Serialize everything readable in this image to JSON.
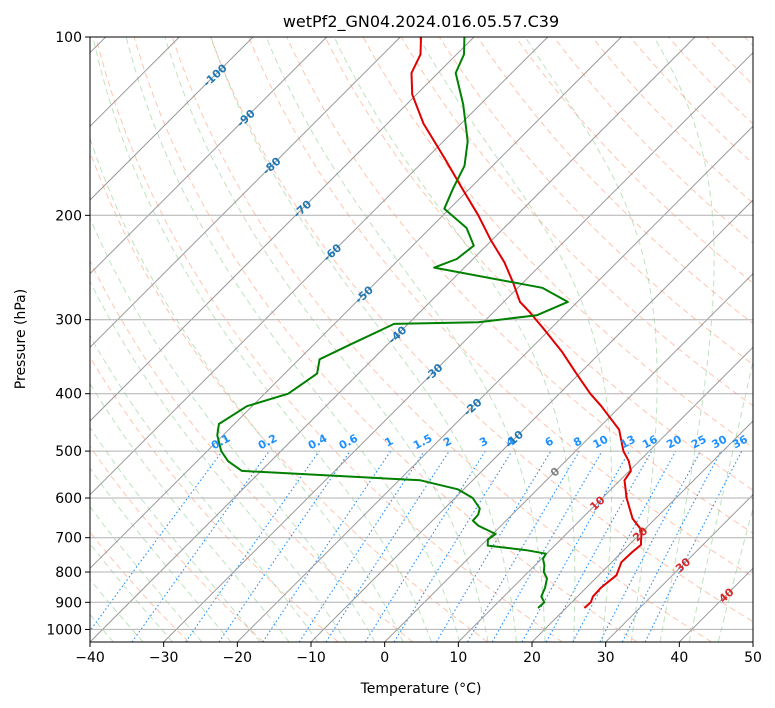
{
  "chart_data": {
    "type": "line",
    "subtype": "skew-t",
    "title": "wetPf2_GN04.2024.016.05.57.C39",
    "xlabel": "Temperature (°C)",
    "ylabel": "Pressure (hPa)",
    "xlim": [
      -40,
      50
    ],
    "ylim": [
      1050,
      100
    ],
    "y_scale": "log",
    "x_ticks": [
      -40,
      -30,
      -20,
      -10,
      0,
      10,
      20,
      30,
      40,
      50
    ],
    "x_tick_labels": [
      "−40",
      "−30",
      "−20",
      "−10",
      "0",
      "10",
      "20",
      "30",
      "40",
      "50"
    ],
    "y_ticks": [
      1000,
      900,
      800,
      700,
      600,
      500,
      400,
      300,
      200,
      100
    ],
    "y_tick_labels": [
      "1000",
      "900",
      "800",
      "700",
      "600",
      "500",
      "400",
      "300",
      "200",
      "100"
    ],
    "grid": true,
    "series": [
      {
        "role": "temperature",
        "color": "#e00000",
        "points": [
          {
            "p": 920,
            "t": 22.5
          },
          {
            "p": 900,
            "t": 22.6
          },
          {
            "p": 880,
            "t": 22.1
          },
          {
            "p": 850,
            "t": 22.0
          },
          {
            "p": 810,
            "t": 22.4
          },
          {
            "p": 770,
            "t": 21.3
          },
          {
            "p": 740,
            "t": 21.4
          },
          {
            "p": 720,
            "t": 21.6
          },
          {
            "p": 680,
            "t": 19.7
          },
          {
            "p": 650,
            "t": 16.9
          },
          {
            "p": 600,
            "t": 13.3
          },
          {
            "p": 560,
            "t": 10.6
          },
          {
            "p": 540,
            "t": 10.2
          },
          {
            "p": 520,
            "t": 8.6
          },
          {
            "p": 500,
            "t": 6.5
          },
          {
            "p": 460,
            "t": 3.0
          },
          {
            "p": 420,
            "t": -2.6
          },
          {
            "p": 400,
            "t": -5.8
          },
          {
            "p": 370,
            "t": -10.4
          },
          {
            "p": 340,
            "t": -15.3
          },
          {
            "p": 310,
            "t": -21.1
          },
          {
            "p": 290,
            "t": -25.4
          },
          {
            "p": 280,
            "t": -27.8
          },
          {
            "p": 260,
            "t": -31.3
          },
          {
            "p": 240,
            "t": -35.3
          },
          {
            "p": 220,
            "t": -40.2
          },
          {
            "p": 200,
            "t": -45.2
          },
          {
            "p": 180,
            "t": -51.1
          },
          {
            "p": 160,
            "t": -57.6
          },
          {
            "p": 140,
            "t": -65.1
          },
          {
            "p": 125,
            "t": -70.6
          },
          {
            "p": 115,
            "t": -73.6
          },
          {
            "p": 107,
            "t": -74.9
          },
          {
            "p": 100,
            "t": -77.2
          }
        ]
      },
      {
        "role": "dewpoint",
        "color": "#008000",
        "points": [
          {
            "p": 920,
            "t": 16.2
          },
          {
            "p": 900,
            "t": 16.3
          },
          {
            "p": 880,
            "t": 15.1
          },
          {
            "p": 850,
            "t": 14.4
          },
          {
            "p": 820,
            "t": 13.4
          },
          {
            "p": 800,
            "t": 12.1
          },
          {
            "p": 780,
            "t": 11.3
          },
          {
            "p": 760,
            "t": 10.2
          },
          {
            "p": 745,
            "t": 9.9
          },
          {
            "p": 735,
            "t": 6.8
          },
          {
            "p": 722,
            "t": 0.9
          },
          {
            "p": 705,
            "t": 0.1
          },
          {
            "p": 690,
            "t": 0.4
          },
          {
            "p": 668,
            "t": -3.1
          },
          {
            "p": 655,
            "t": -4.5
          },
          {
            "p": 640,
            "t": -4.6
          },
          {
            "p": 625,
            "t": -5.2
          },
          {
            "p": 600,
            "t": -7.6
          },
          {
            "p": 580,
            "t": -10.8
          },
          {
            "p": 560,
            "t": -17.1
          },
          {
            "p": 540,
            "t": -42.6
          },
          {
            "p": 520,
            "t": -45.8
          },
          {
            "p": 500,
            "t": -48.1
          },
          {
            "p": 470,
            "t": -50.8
          },
          {
            "p": 450,
            "t": -52.1
          },
          {
            "p": 420,
            "t": -50.7
          },
          {
            "p": 400,
            "t": -46.8
          },
          {
            "p": 370,
            "t": -45.6
          },
          {
            "p": 350,
            "t": -47.2
          },
          {
            "p": 330,
            "t": -45.0
          },
          {
            "p": 305,
            "t": -41.9
          },
          {
            "p": 303,
            "t": -30.7
          },
          {
            "p": 295,
            "t": -23.7
          },
          {
            "p": 280,
            "t": -21.3
          },
          {
            "p": 265,
            "t": -26.7
          },
          {
            "p": 245,
            "t": -44.1
          },
          {
            "p": 237,
            "t": -42.2
          },
          {
            "p": 225,
            "t": -41.7
          },
          {
            "p": 210,
            "t": -45.1
          },
          {
            "p": 195,
            "t": -50.7
          },
          {
            "p": 180,
            "t": -52.3
          },
          {
            "p": 165,
            "t": -53.8
          },
          {
            "p": 150,
            "t": -56.7
          },
          {
            "p": 130,
            "t": -62.3
          },
          {
            "p": 115,
            "t": -67.6
          },
          {
            "p": 107,
            "t": -69.0
          },
          {
            "p": 100,
            "t": -71.3
          }
        ]
      }
    ],
    "mixing_ratio_labels": [
      "0.1",
      "0.2",
      "0.4",
      "0.6",
      "1",
      "1.5",
      "2",
      "3",
      "4",
      "6",
      "8",
      "10",
      "13",
      "16",
      "20",
      "25",
      "30",
      "36"
    ],
    "mixing_ratio_values": [
      0.1,
      0.2,
      0.4,
      0.6,
      1,
      1.5,
      2,
      3,
      4,
      6,
      8,
      10,
      13,
      16,
      20,
      25,
      30,
      36
    ],
    "isotherm_labels": [
      {
        "text": "-100",
        "t": -100,
        "p": 116,
        "color": "#1f77b4"
      },
      {
        "text": "-90",
        "t": -90,
        "p": 137,
        "color": "#1f77b4"
      },
      {
        "text": "-80",
        "t": -80,
        "p": 165,
        "color": "#1f77b4"
      },
      {
        "text": "-70",
        "t": -70,
        "p": 195,
        "color": "#1f77b4"
      },
      {
        "text": "-60",
        "t": -60,
        "p": 231,
        "color": "#1f77b4"
      },
      {
        "text": "-50",
        "t": -50,
        "p": 272,
        "color": "#1f77b4"
      },
      {
        "text": "-40",
        "t": -40,
        "p": 318,
        "color": "#1f77b4"
      },
      {
        "text": "-30",
        "t": -30,
        "p": 368,
        "color": "#1f77b4"
      },
      {
        "text": "-20",
        "t": -20,
        "p": 421,
        "color": "#1f77b4"
      },
      {
        "text": "-10",
        "t": -10,
        "p": 477,
        "color": "#1f77b4"
      },
      {
        "text": "0",
        "t": 0,
        "p": 542,
        "color": "#808080"
      },
      {
        "text": "10",
        "t": 10,
        "p": 612,
        "color": "#d62728"
      },
      {
        "text": "20",
        "t": 20,
        "p": 690,
        "color": "#d62728"
      },
      {
        "text": "30",
        "t": 30,
        "p": 778,
        "color": "#d62728"
      },
      {
        "text": "40",
        "t": 40,
        "p": 875,
        "color": "#d62728"
      }
    ]
  }
}
